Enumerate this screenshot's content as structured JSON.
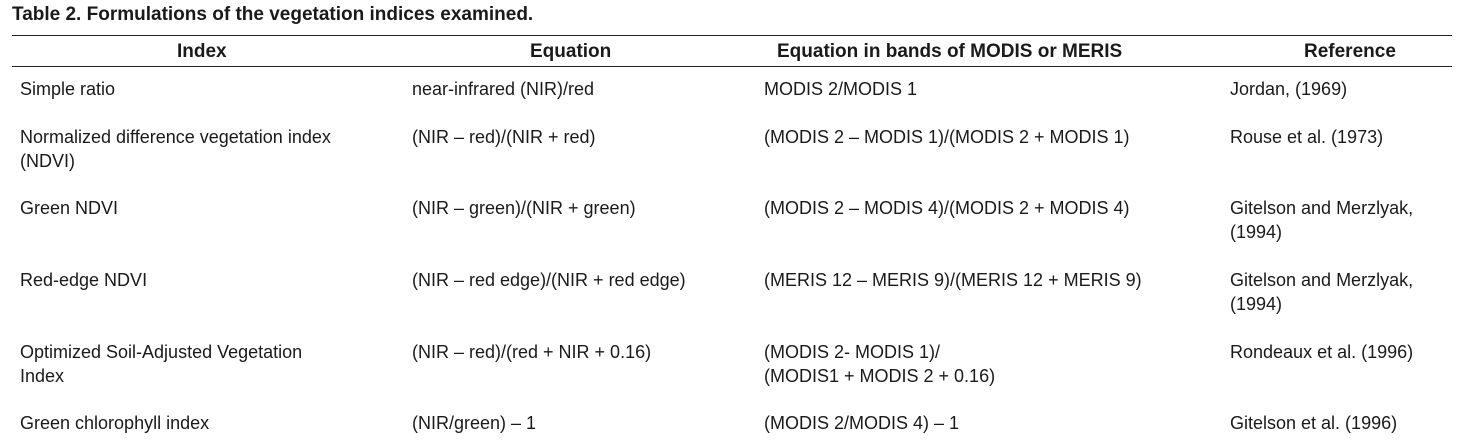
{
  "caption": "Table 2. Formulations of the vegetation indices examined.",
  "headers": {
    "index": "Index",
    "equation": "Equation",
    "bands": "Equation in bands of MODIS or MERIS",
    "reference": "Reference"
  },
  "rows": [
    {
      "index": [
        "Simple ratio"
      ],
      "equation": [
        "near-infrared (NIR)/red"
      ],
      "bands": [
        "MODIS 2/MODIS 1"
      ],
      "reference": [
        "Jordan, (1969)"
      ]
    },
    {
      "index": [
        "Normalized difference vegetation index",
        "(NDVI)"
      ],
      "equation": [
        "(NIR – red)/(NIR + red)"
      ],
      "bands": [
        "(MODIS 2 – MODIS 1)/(MODIS 2 + MODIS 1)"
      ],
      "reference": [
        "Rouse et al. (1973)"
      ]
    },
    {
      "index": [
        "Green NDVI"
      ],
      "equation": [
        "(NIR – green)/(NIR + green)"
      ],
      "bands": [
        "(MODIS 2 – MODIS 4)/(MODIS 2 + MODIS 4)"
      ],
      "reference": [
        "Gitelson and Merzlyak,",
        "(1994)"
      ]
    },
    {
      "index": [
        "Red-edge NDVI"
      ],
      "equation": [
        "(NIR – red edge)/(NIR + red edge)"
      ],
      "bands": [
        "(MERIS 12 – MERIS 9)/(MERIS 12 + MERIS 9)"
      ],
      "reference": [
        "Gitelson and Merzlyak,",
        "(1994)"
      ]
    },
    {
      "index": [
        "Optimized Soil-Adjusted Vegetation",
        "Index"
      ],
      "equation": [
        "(NIR – red)/(red + NIR + 0.16)"
      ],
      "bands": [
        "(MODIS 2- MODIS 1)/",
        "(MODIS1 + MODIS 2 + 0.16)"
      ],
      "reference": [
        "Rondeaux et al. (1996)"
      ]
    },
    {
      "index": [
        "Green chlorophyll index"
      ],
      "equation": [
        "(NIR/green) – 1"
      ],
      "bands": [
        "(MODIS 2/MODIS 4) – 1"
      ],
      "reference": [
        "Gitelson et al. (1996)"
      ]
    }
  ]
}
